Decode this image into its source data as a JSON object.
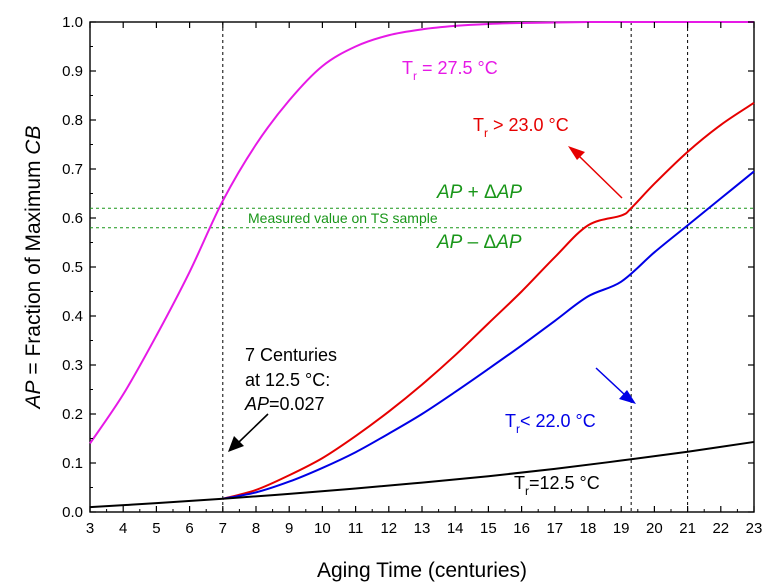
{
  "chart_data": {
    "type": "line",
    "xlabel": "Aging Time (centuries)",
    "ylabel": {
      "it1": "AP",
      "mid": " = Fraction of Maximum ",
      "it2": "CB"
    },
    "xlim": [
      3,
      23
    ],
    "ylim": [
      0.0,
      1.0
    ],
    "x_ticks": [
      3,
      4,
      5,
      6,
      7,
      8,
      9,
      10,
      11,
      12,
      13,
      14,
      15,
      16,
      17,
      18,
      19,
      20,
      21,
      22,
      23
    ],
    "y_ticks": [
      0.0,
      0.1,
      0.2,
      0.3,
      0.4,
      0.5,
      0.6,
      0.7,
      0.8,
      0.9,
      1.0
    ],
    "series": [
      {
        "name": "Tr = 27.5 °C",
        "color": "#e619e6",
        "x": [
          3,
          4,
          5,
          6,
          7,
          8,
          9,
          10,
          11,
          12,
          13,
          14,
          15,
          16,
          17,
          18,
          19,
          20,
          21,
          22,
          23
        ],
        "y": [
          0.14,
          0.24,
          0.36,
          0.49,
          0.635,
          0.75,
          0.84,
          0.91,
          0.95,
          0.973,
          0.985,
          0.992,
          0.996,
          0.998,
          0.999,
          1.0,
          1.0,
          1.0,
          1.0,
          1.0,
          1.0
        ]
      },
      {
        "name": "Tr > 23.0 °C",
        "color": "#e60000",
        "x": [
          7,
          8,
          9,
          10,
          11,
          12,
          13,
          14,
          15,
          16,
          17,
          18,
          19,
          19.3,
          20,
          21,
          22,
          23
        ],
        "y": [
          0.027,
          0.045,
          0.075,
          0.11,
          0.155,
          0.205,
          0.26,
          0.32,
          0.385,
          0.45,
          0.52,
          0.585,
          0.605,
          0.62,
          0.67,
          0.735,
          0.79,
          0.835
        ]
      },
      {
        "name": "Tr < 22.0 °C",
        "color": "#0000e6",
        "x": [
          7,
          8,
          9,
          10,
          11,
          12,
          13,
          14,
          15,
          16,
          17,
          18,
          19,
          20,
          21,
          22,
          23
        ],
        "y": [
          0.027,
          0.04,
          0.062,
          0.09,
          0.122,
          0.16,
          0.2,
          0.245,
          0.292,
          0.34,
          0.39,
          0.44,
          0.47,
          0.53,
          0.585,
          0.64,
          0.695
        ]
      },
      {
        "name": "Tr=12.5 °C",
        "color": "#000000",
        "x": [
          3,
          5,
          7,
          9,
          11,
          13,
          15,
          17,
          19,
          21,
          23
        ],
        "y": [
          0.01,
          0.018,
          0.027,
          0.037,
          0.048,
          0.06,
          0.073,
          0.088,
          0.105,
          0.123,
          0.143
        ]
      }
    ],
    "vlines": [
      7,
      19.3,
      21
    ],
    "hlines": [
      0.62,
      0.58
    ],
    "hline_color": "#199619",
    "annotations": {
      "t275": {
        "main": "T",
        "sub": "r",
        "rest": " = 27.5 °C"
      },
      "t230": {
        "main": "T",
        "sub": "r",
        "rest": " > 23.0 °C"
      },
      "t220": {
        "main": "T",
        "sub": "r",
        "rest": "< 22.0 °C"
      },
      "t125": {
        "main": "T",
        "sub": "r",
        "rest": "=12.5 °C"
      },
      "measured": "Measured value on TS sample",
      "ap_plus": {
        "it1": "AP",
        "mid": " + Δ",
        "it2": "AP"
      },
      "ap_minus": {
        "it1": "AP",
        "mid": " – Δ",
        "it2": "AP"
      },
      "centuries_line1": "7 Centuries",
      "centuries_line2": "at 12.5 °C:",
      "centuries_line3": {
        "it": "AP",
        "rest": "=0.027"
      }
    }
  }
}
